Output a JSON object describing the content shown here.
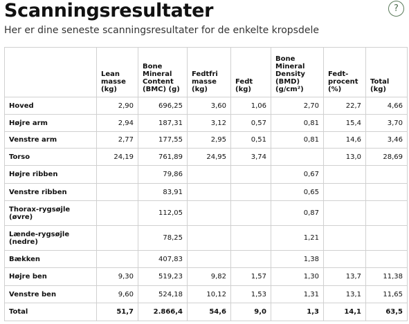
{
  "header": {
    "title": "Scanningsresultater",
    "subtitle": "Her er dine seneste scanningsresultater for de enkelte kropsdele",
    "help_icon": "?"
  },
  "table": {
    "columns": [
      "Lean\nmasse\n(kg)",
      "Bone\nMineral\nContent\n(BMC) (g)",
      "Fedtfri\nmasse\n(kg)",
      "Fedt\n(kg)",
      "Bone\nMineral\nDensity\n(BMD)\n(g/cm²)",
      "Fedt-\nprocent\n(%)",
      "Total\n(kg)"
    ],
    "rows": [
      [
        "Hoved",
        "2,90",
        "696,25",
        "3,60",
        "1,06",
        "2,70",
        "22,7",
        "4,66"
      ],
      [
        "Højre arm",
        "2,94",
        "187,31",
        "3,12",
        "0,57",
        "0,81",
        "15,4",
        "3,70"
      ],
      [
        "Venstre arm",
        "2,77",
        "177,55",
        "2,95",
        "0,51",
        "0,81",
        "14,6",
        "3,46"
      ],
      [
        "Torso",
        "24,19",
        "761,89",
        "24,95",
        "3,74",
        null,
        "13,0",
        "28,69"
      ],
      [
        "Højre ribben",
        null,
        "79,86",
        null,
        null,
        "0,67",
        null,
        null
      ],
      [
        "Venstre ribben",
        null,
        "83,91",
        null,
        null,
        "0,65",
        null,
        null
      ],
      [
        "Thorax-rygsøjle\n(øvre)",
        null,
        "112,05",
        null,
        null,
        "0,87",
        null,
        null
      ],
      [
        "Lænde-rygsøjle\n(nedre)",
        null,
        "78,25",
        null,
        null,
        "1,21",
        null,
        null
      ],
      [
        "Bækken",
        null,
        "407,83",
        null,
        null,
        "1,38",
        null,
        null
      ],
      [
        "Højre ben",
        "9,30",
        "519,23",
        "9,82",
        "1,57",
        "1,30",
        "13,7",
        "11,38"
      ],
      [
        "Venstre ben",
        "9,60",
        "524,18",
        "10,12",
        "1,53",
        "1,31",
        "13,1",
        "11,65"
      ]
    ],
    "total": [
      "Total",
      "51,7",
      "2.866,4",
      "54,6",
      "9,0",
      "1,3",
      "14,1",
      "63,5"
    ]
  }
}
